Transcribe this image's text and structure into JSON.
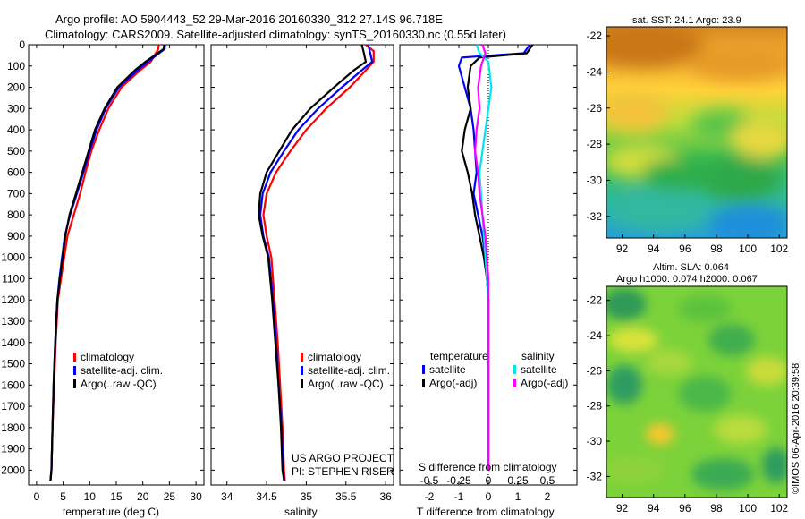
{
  "header": {
    "line1": "Argo profile: AO 5904443_52 29-Mar-2016 20160330_312 27.14S 96.718E",
    "line2": "Climatology: CARS2009. Satellite-adjusted climatology: synTS_20160330.nc (0.55d later)"
  },
  "colors": {
    "climatology": "#ff0000",
    "satellite": "#0000ff",
    "argo": "#000000",
    "cyan": "#00e5ee",
    "magenta": "#ff00ff"
  },
  "depth_ticks": [
    0,
    100,
    200,
    300,
    400,
    500,
    600,
    700,
    800,
    900,
    1000,
    1100,
    1200,
    1300,
    1400,
    1500,
    1600,
    1700,
    1800,
    1900,
    2000
  ],
  "chart_data": [
    {
      "type": "line",
      "id": "temperature",
      "xlabel": "temperature (deg C)",
      "xlim": [
        -1.5,
        31.5
      ],
      "ylim": [
        2070,
        0
      ],
      "xticks": [
        0,
        5,
        10,
        15,
        20,
        25,
        30
      ],
      "xtick_labels": [
        "0",
        "5",
        "10",
        "15",
        "20",
        "25",
        "30"
      ],
      "legend": [
        "climatology",
        "satellite-adj. clim.",
        "Argo(..raw -QC)"
      ],
      "series": [
        {
          "name": "climatology",
          "color": "#ff0000",
          "x": [
            23.0,
            22.9,
            21.5,
            19.5,
            16.0,
            13.5,
            11.8,
            10.3,
            9.2,
            8.2,
            7.0,
            5.8,
            5.2,
            4.6,
            4.0,
            3.6,
            3.3,
            3.0,
            2.8,
            2.6
          ],
          "y": [
            0,
            20,
            80,
            120,
            200,
            300,
            400,
            500,
            600,
            700,
            800,
            900,
            1000,
            1100,
            1200,
            1400,
            1600,
            1800,
            2000,
            2050
          ]
        },
        {
          "name": "satellite-adj. clim.",
          "color": "#0000ff",
          "x": [
            24.2,
            24.1,
            21.0,
            19.0,
            15.5,
            13.0,
            11.3,
            10.0,
            8.8,
            7.6,
            6.3,
            5.3,
            4.8,
            4.3,
            3.9,
            3.5,
            3.2,
            3.0,
            2.8,
            2.6
          ],
          "y": [
            0,
            20,
            80,
            120,
            200,
            300,
            400,
            500,
            600,
            700,
            800,
            900,
            1000,
            1100,
            1200,
            1400,
            1600,
            1800,
            2000,
            2050
          ]
        },
        {
          "name": "Argo(..raw -QC)",
          "color": "#000000",
          "x": [
            24.0,
            23.9,
            20.5,
            18.5,
            15.2,
            12.8,
            11.0,
            9.8,
            8.6,
            7.4,
            6.2,
            5.4,
            4.9,
            4.4,
            3.9,
            3.5,
            3.2,
            3.0,
            2.8,
            2.6
          ],
          "y": [
            0,
            20,
            80,
            120,
            200,
            300,
            400,
            500,
            600,
            700,
            800,
            900,
            1000,
            1100,
            1200,
            1400,
            1600,
            1800,
            2000,
            2050
          ]
        }
      ]
    },
    {
      "type": "line",
      "id": "salinity",
      "xlabel": "salinity",
      "xlim": [
        33.8,
        36.1
      ],
      "ylim": [
        2070,
        0
      ],
      "xticks": [
        34,
        34.5,
        35,
        35.5,
        36
      ],
      "xtick_labels": [
        "34",
        "34.5",
        "35",
        "35.5",
        "36"
      ],
      "legend": [
        "climatology",
        "satellite-adj. clim.",
        "Argo(..raw -QC)"
      ],
      "annotation": [
        "US ARGO PROJECT",
        "PI: STEPHEN RISER"
      ],
      "series": [
        {
          "name": "climatology",
          "color": "#ff0000",
          "x": [
            35.75,
            35.85,
            35.85,
            35.75,
            35.55,
            35.25,
            35.0,
            34.8,
            34.62,
            34.5,
            34.46,
            34.5,
            34.56,
            34.6,
            34.64,
            34.67,
            34.7,
            34.72,
            34.73
          ],
          "y": [
            0,
            30,
            80,
            120,
            200,
            300,
            400,
            500,
            600,
            700,
            800,
            900,
            1000,
            1200,
            1400,
            1600,
            1800,
            2000,
            2050
          ]
        },
        {
          "name": "satellite-adj. clim.",
          "color": "#0000ff",
          "x": [
            35.78,
            35.8,
            35.83,
            35.7,
            35.45,
            35.15,
            34.9,
            34.72,
            34.55,
            34.45,
            34.42,
            34.46,
            34.53,
            34.58,
            34.62,
            34.65,
            34.69,
            34.71,
            34.72
          ],
          "y": [
            0,
            30,
            80,
            120,
            200,
            300,
            400,
            500,
            600,
            700,
            800,
            900,
            1000,
            1200,
            1400,
            1600,
            1800,
            2000,
            2050
          ]
        },
        {
          "name": "Argo(..raw -QC)",
          "color": "#000000",
          "x": [
            35.7,
            35.72,
            35.75,
            35.6,
            35.35,
            35.05,
            34.82,
            34.66,
            34.5,
            34.42,
            34.4,
            34.45,
            34.52,
            34.57,
            34.61,
            34.65,
            34.68,
            34.7,
            34.72
          ],
          "y": [
            0,
            30,
            80,
            120,
            200,
            300,
            400,
            500,
            600,
            700,
            800,
            900,
            1000,
            1200,
            1400,
            1600,
            1800,
            2000,
            2050
          ]
        }
      ]
    },
    {
      "type": "line",
      "id": "difference",
      "xlabel": "T difference from climatology",
      "xlabel_top": "S difference from climatology",
      "xlim": [
        -3,
        3
      ],
      "ylim": [
        2070,
        0
      ],
      "xticks": [
        -2,
        -1,
        0,
        1,
        2
      ],
      "xtick_labels": [
        "-2",
        "-1",
        "0",
        "1",
        "2"
      ],
      "top_ticks": [
        -0.5,
        -0.25,
        0,
        0.25,
        0.5
      ],
      "top_tick_labels": [
        "-0.5",
        "-0.25",
        "0",
        "0.25",
        "0.5"
      ],
      "legend_titles": [
        "temperature",
        "salinity"
      ],
      "legend": [
        "satellite",
        "Argo(-adj)",
        "satellite",
        "Argo(-adj)"
      ],
      "series": [
        {
          "name": "satellite",
          "color": "#0000ff",
          "x": [
            1.4,
            1.2,
            -0.9,
            -1.0,
            -0.8,
            -0.6,
            -0.5,
            -0.45,
            -0.4,
            -0.5,
            -0.35,
            -0.2,
            -0.1,
            -0.05,
            0,
            0,
            0
          ],
          "y": [
            0,
            40,
            60,
            100,
            200,
            300,
            400,
            500,
            600,
            700,
            800,
            900,
            1000,
            1100,
            1200,
            1500,
            2000
          ]
        },
        {
          "name": "Argo(-adj)",
          "color": "#000000",
          "x": [
            1.5,
            1.3,
            -0.3,
            -0.6,
            -0.7,
            -0.6,
            -0.8,
            -0.9,
            -0.7,
            -0.55,
            -0.45,
            -0.3,
            -0.15,
            -0.05,
            0,
            0,
            0
          ],
          "y": [
            0,
            40,
            60,
            100,
            200,
            300,
            400,
            500,
            600,
            700,
            800,
            900,
            1000,
            1100,
            1200,
            1500,
            2000
          ]
        },
        {
          "name": "satellite",
          "color": "#00e5ee",
          "x": [
            -0.4,
            -0.3,
            0,
            0.1,
            0,
            -0.1,
            -0.2,
            -0.3,
            -0.25,
            -0.2,
            -0.15,
            -0.1,
            -0.05,
            0,
            0,
            0
          ],
          "y": [
            0,
            40,
            80,
            200,
            300,
            400,
            500,
            600,
            700,
            800,
            900,
            1000,
            1100,
            1200,
            1500,
            2000
          ]
        },
        {
          "name": "Argo(-adj)",
          "color": "#ff00ff",
          "x": [
            -0.2,
            -0.1,
            -0.25,
            -0.35,
            -0.3,
            -0.4,
            -0.45,
            -0.35,
            -0.3,
            -0.2,
            -0.1,
            -0.05,
            0,
            0,
            0
          ],
          "y": [
            0,
            40,
            100,
            200,
            300,
            400,
            500,
            600,
            700,
            800,
            900,
            1000,
            1100,
            1500,
            2000
          ]
        }
      ]
    },
    {
      "type": "heatmap",
      "id": "sst",
      "title": "sat. SST: 24.1  Argo: 23.9",
      "xlim": [
        91,
        102.5
      ],
      "ylim": [
        -33.2,
        -21.5
      ],
      "xticks": [
        92,
        94,
        96,
        98,
        100,
        102
      ],
      "xtick_labels": [
        "92",
        "94",
        "96",
        "98",
        "100",
        "102"
      ],
      "yticks": [
        -22,
        -24,
        -26,
        -28,
        -30,
        -32
      ],
      "ytick_labels": [
        "-22",
        "-24",
        "-26",
        "-28",
        "-30",
        "-32"
      ]
    },
    {
      "type": "heatmap",
      "id": "sla",
      "title": "Altim. SLA: 0.064",
      "subtitle": "Argo h1000: 0.074 h2000: 0.067",
      "xlim": [
        91,
        102.5
      ],
      "ylim": [
        -33.2,
        -21.2
      ],
      "xticks": [
        92,
        94,
        96,
        98,
        100,
        102
      ],
      "xtick_labels": [
        "92",
        "94",
        "96",
        "98",
        "100",
        "102"
      ],
      "yticks": [
        -22,
        -24,
        -26,
        -28,
        -30,
        -32
      ],
      "ytick_labels": [
        "-22",
        "-24",
        "-26",
        "-28",
        "-30",
        "-32"
      ]
    }
  ],
  "footer_stamp": "©IMOS 06-Apr-2016 20:39:58"
}
